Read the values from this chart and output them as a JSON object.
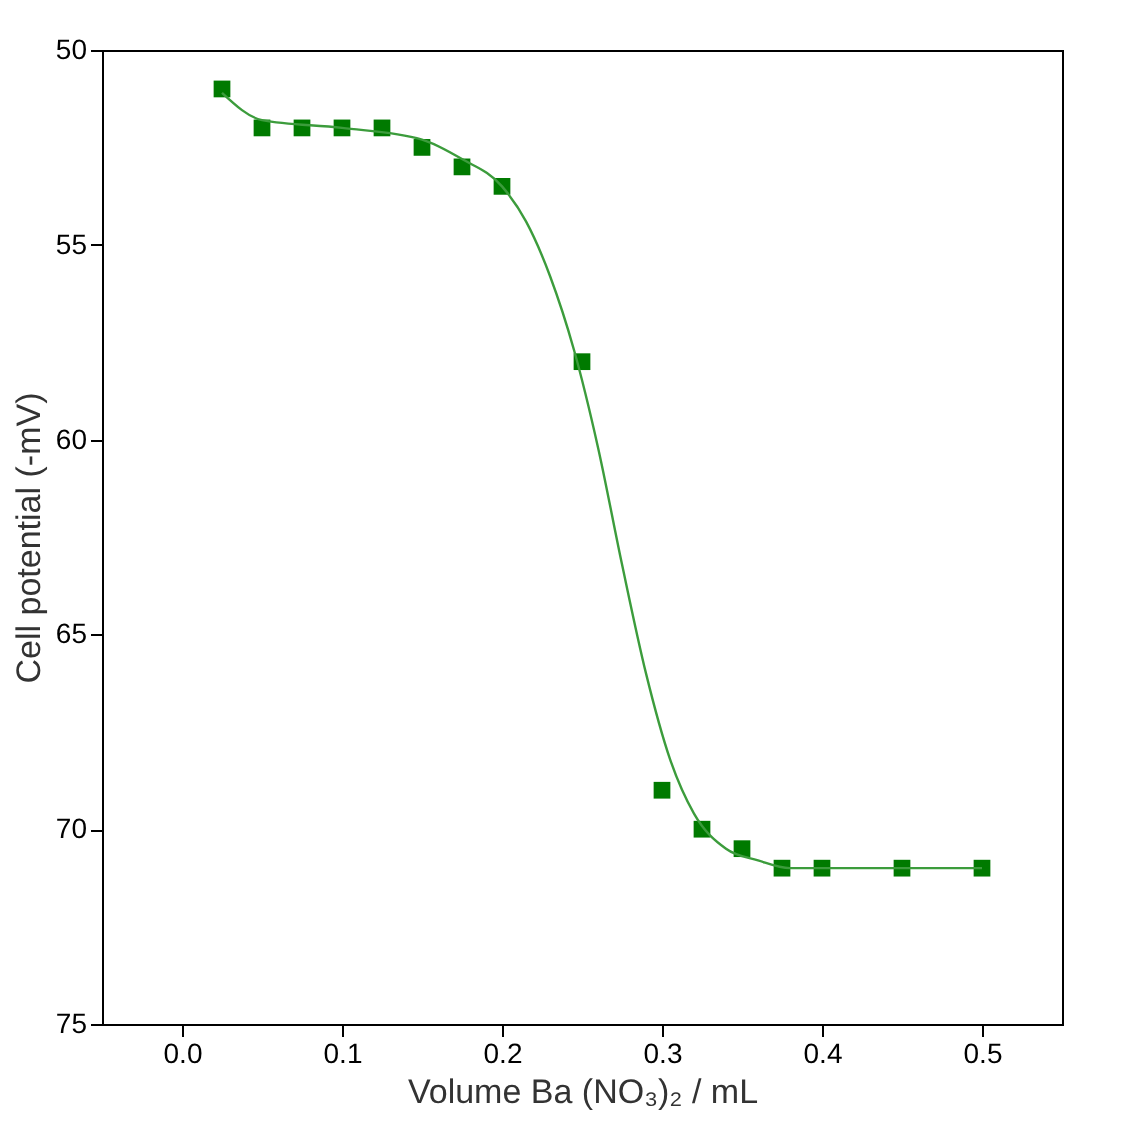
{
  "chart_data": {
    "type": "scatter",
    "xlabel": "Volume Ba (NO₃)₂ / mL",
    "ylabel": "Cell potential (-mV)",
    "xlim": [
      -0.05,
      0.55
    ],
    "ylim": [
      75,
      50
    ],
    "xticks": [
      {
        "value": 0,
        "label": "0.0"
      },
      0.1,
      0.2,
      0.3,
      0.4,
      0.5
    ],
    "yticks": [
      50,
      55,
      60,
      65,
      70,
      75
    ],
    "grid": false,
    "marker": "square",
    "x": [
      0.025,
      0.05,
      0.075,
      0.1,
      0.125,
      0.15,
      0.175,
      0.2,
      0.25,
      0.3,
      0.325,
      0.35,
      0.375,
      0.4,
      0.45,
      0.5
    ],
    "series": [
      {
        "color": "#007a00",
        "values": [
          51,
          52,
          52,
          52,
          52,
          52.5,
          53,
          53.5,
          58,
          69,
          70,
          70.5,
          71,
          71,
          71,
          71
        ]
      },
      {
        "type": "line",
        "color": "#3c9c3c",
        "line_style": "solid",
        "marker": "none",
        "x": [
          0.025,
          0.05,
          0.1,
          0.15,
          0.175,
          0.2,
          0.215,
          0.23,
          0.245,
          0.26,
          0.275,
          0.29,
          0.305,
          0.32,
          0.34,
          0.36,
          0.38,
          0.4,
          0.45,
          0.5
        ],
        "values": [
          51.1,
          51.8,
          52,
          52.3,
          52.8,
          53.5,
          54.4,
          55.8,
          57.7,
          60.2,
          63.2,
          66,
          68.2,
          69.6,
          70.5,
          70.8,
          71,
          71,
          71,
          71
        ]
      }
    ]
  }
}
